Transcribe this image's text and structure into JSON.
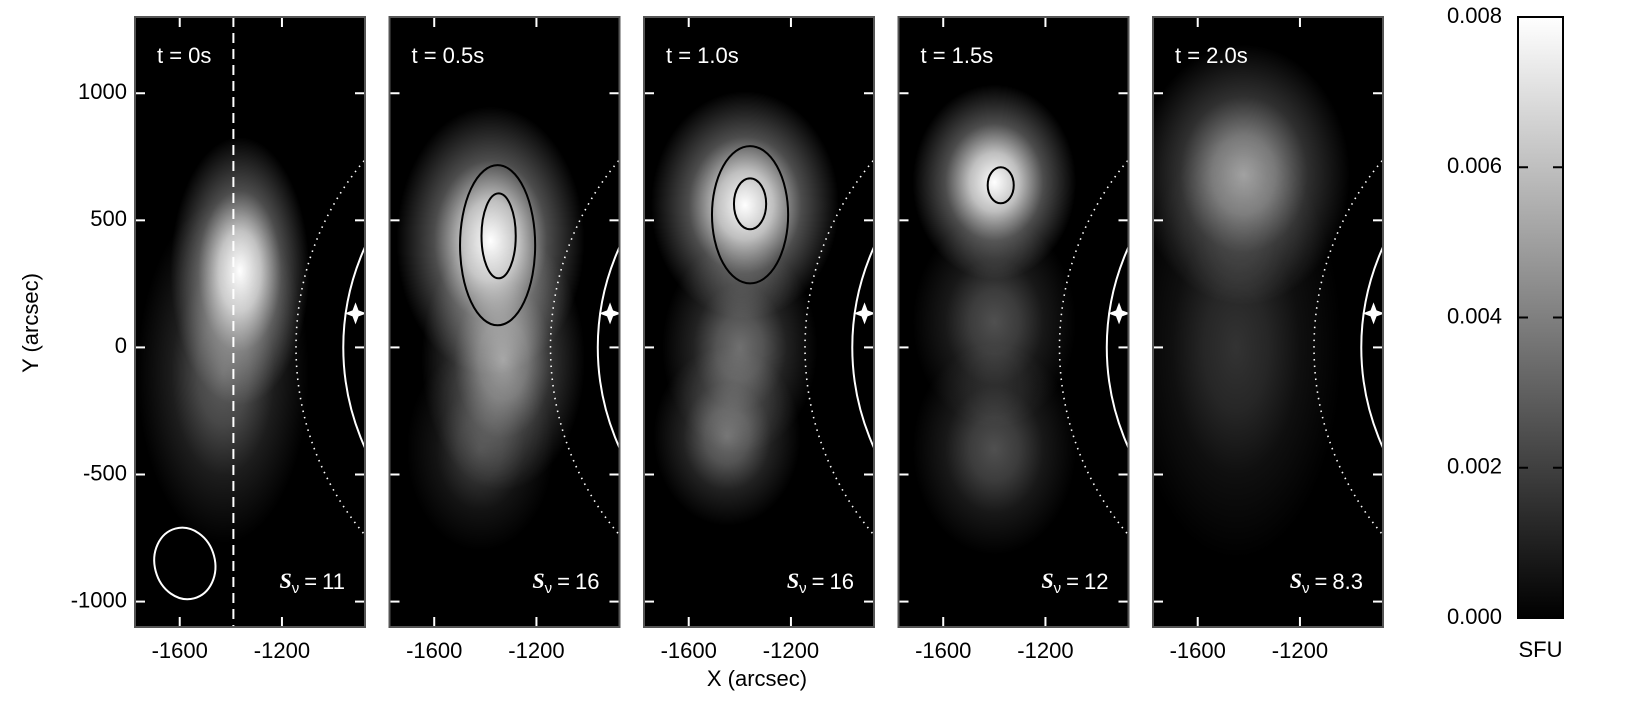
{
  "chart_data": {
    "type": "image-panels",
    "x_label": "X (arcsec)",
    "y_label": "Y (arcsec)",
    "xlim": [
      -1775,
      -875
    ],
    "ylim": [
      -1100,
      1300
    ],
    "xticks": [
      -1600,
      -1200
    ],
    "yticks": [
      -1000,
      -500,
      0,
      500,
      1000
    ],
    "flux_symbol": "S",
    "flux_subscript": "ν",
    "flux_operator": "=",
    "circles": [
      {
        "r": 960,
        "style": "solid"
      },
      {
        "r": 1145,
        "style": "dotted"
      }
    ],
    "marker": {
      "x": -912,
      "y": 134
    },
    "colorbar": {
      "label": "SFU",
      "ylim": [
        0,
        0.008
      ],
      "yticks": [
        {
          "value": 0,
          "label": "0.000"
        },
        {
          "value": 0.002,
          "label": "0.002"
        },
        {
          "value": 0.004,
          "label": "0.004"
        },
        {
          "value": 0.006,
          "label": "0.006"
        },
        {
          "value": 0.008,
          "label": "0.008"
        }
      ]
    },
    "panels": [
      {
        "time": "t = 0s",
        "flux": 11,
        "cut_x": -1390,
        "beam": {
          "x": -1580,
          "y": -850,
          "rx": 118,
          "ry": 142
        },
        "sources": [
          {
            "x": -1365,
            "y": 300,
            "sx": 170,
            "sy": 330,
            "peak": 0.009
          },
          {
            "x": -1430,
            "y": -100,
            "sx": 210,
            "sy": 420,
            "peak": 0.003
          }
        ],
        "contours": []
      },
      {
        "time": "t = 0.5s",
        "flux": 16,
        "sources": [
          {
            "x": -1380,
            "y": 420,
            "sx": 230,
            "sy": 330,
            "peak": 0.012
          },
          {
            "x": -1330,
            "y": -50,
            "sx": 200,
            "sy": 320,
            "peak": 0.005
          },
          {
            "x": -1420,
            "y": -400,
            "sx": 180,
            "sy": 250,
            "peak": 0.002
          }
        ],
        "contours": [
          {
            "x": -1352,
            "y": 402,
            "rx": 147,
            "ry": 315
          },
          {
            "x": -1348,
            "y": 439,
            "rx": 67,
            "ry": 167
          }
        ]
      },
      {
        "time": "t = 1.0s",
        "flux": 16,
        "sources": [
          {
            "x": -1380,
            "y": 560,
            "sx": 230,
            "sy": 280,
            "peak": 0.011
          },
          {
            "x": -1400,
            "y": 0,
            "sx": 190,
            "sy": 260,
            "peak": 0.0035
          },
          {
            "x": -1450,
            "y": -350,
            "sx": 180,
            "sy": 220,
            "peak": 0.0035
          }
        ],
        "contours": [
          {
            "x": -1360,
            "y": 522,
            "rx": 149,
            "ry": 270
          },
          {
            "x": -1360,
            "y": 565,
            "rx": 63,
            "ry": 100
          }
        ]
      },
      {
        "time": "t = 1.5s",
        "flux": 12,
        "sources": [
          {
            "x": -1400,
            "y": 650,
            "sx": 200,
            "sy": 240,
            "peak": 0.009
          },
          {
            "x": -1400,
            "y": 100,
            "sx": 200,
            "sy": 260,
            "peak": 0.0025
          },
          {
            "x": -1400,
            "y": -400,
            "sx": 200,
            "sy": 260,
            "peak": 0.0025
          }
        ],
        "contours": [
          {
            "x": -1375,
            "y": 638,
            "rx": 51,
            "ry": 71
          }
        ]
      },
      {
        "time": "t = 2.0s",
        "flux": 8.3,
        "sources": [
          {
            "x": -1420,
            "y": 680,
            "sx": 260,
            "sy": 320,
            "peak": 0.005
          },
          {
            "x": -1450,
            "y": 0,
            "sx": 260,
            "sy": 520,
            "peak": 0.0016
          }
        ],
        "contours": []
      }
    ]
  }
}
